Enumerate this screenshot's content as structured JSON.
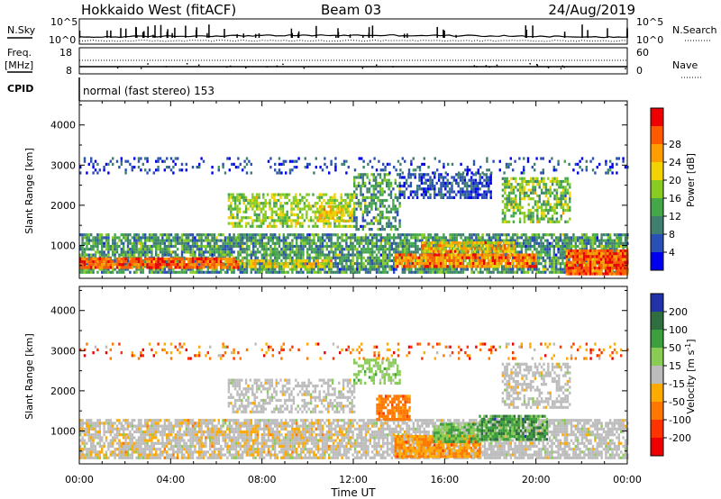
{
  "header": {
    "station": "Hokkaido West (fitACF)",
    "beam": "Beam 03",
    "date": "24/Aug/2019"
  },
  "noise_panel": {
    "left_label": "N.Sky",
    "right_label": "N.Search",
    "tick_top": "10^5",
    "tick_bottom": "10^0"
  },
  "freq_panel": {
    "left_label_1": "Freq.",
    "left_label_2": "[MHz]",
    "left_tick_top": "18",
    "left_tick_bottom": "8",
    "right_label": "Nave",
    "right_tick_top": "60",
    "right_tick_bottom": "0"
  },
  "cpid": {
    "label": "CPID",
    "value": "normal (fast stereo) 153"
  },
  "axes": {
    "x_label": "Time UT",
    "x_ticks": [
      "00:00",
      "04:00",
      "08:00",
      "12:00",
      "16:00",
      "20:00",
      "00:00"
    ],
    "y_label": "Slant Range [km]",
    "y_ticks": [
      "1000",
      "2000",
      "3000",
      "4000"
    ]
  },
  "chart_data": [
    {
      "type": "heatmap",
      "name_shown": "Power [dB]",
      "colorbar_label": "Power [dB]",
      "colorbar_ticks": [
        "4",
        "8",
        "12",
        "16",
        "20",
        "24",
        "28"
      ],
      "colors": [
        "#0000ee",
        "#2a4fb5",
        "#3f7f6f",
        "#44a84a",
        "#88cc22",
        "#f2d200",
        "#ff9c00",
        "#ff5a00",
        "#ee0000"
      ],
      "xlim": [
        0,
        24
      ],
      "ylim": [
        180,
        4600
      ],
      "regions": [
        {
          "t": [
            0,
            24
          ],
          "r": [
            300,
            1300
          ],
          "level": [
            1,
            4
          ],
          "density": 0.8
        },
        {
          "t": [
            0,
            7
          ],
          "r": [
            450,
            700
          ],
          "level": [
            6,
            8
          ],
          "density": 0.9
        },
        {
          "t": [
            7,
            11
          ],
          "r": [
            450,
            650
          ],
          "level": [
            4,
            6
          ],
          "density": 0.6
        },
        {
          "t": [
            13.8,
            20
          ],
          "r": [
            450,
            800
          ],
          "level": [
            5,
            8
          ],
          "density": 0.9
        },
        {
          "t": [
            15,
            19
          ],
          "r": [
            850,
            1100
          ],
          "level": [
            4,
            7
          ],
          "density": 0.8
        },
        {
          "t": [
            21.3,
            24
          ],
          "r": [
            300,
            900
          ],
          "level": [
            6,
            8
          ],
          "density": 0.95
        },
        {
          "t": [
            6.5,
            12
          ],
          "r": [
            1500,
            2300
          ],
          "level": [
            3,
            5
          ],
          "density": 0.6
        },
        {
          "t": [
            10.5,
            12
          ],
          "r": [
            1600,
            2000
          ],
          "level": [
            4,
            6
          ],
          "density": 0.7
        },
        {
          "t": [
            12,
            14
          ],
          "r": [
            1400,
            2800
          ],
          "level": [
            1,
            4
          ],
          "density": 0.5
        },
        {
          "t": [
            14,
            18
          ],
          "r": [
            2200,
            2800
          ],
          "level": [
            0,
            2
          ],
          "density": 0.6
        },
        {
          "t": [
            18.5,
            21.5
          ],
          "r": [
            1600,
            2700
          ],
          "level": [
            2,
            5
          ],
          "density": 0.6
        },
        {
          "t": [
            0,
            24
          ],
          "r": [
            2800,
            3200
          ],
          "level": [
            0,
            2
          ],
          "density": 0.2
        }
      ]
    },
    {
      "type": "heatmap",
      "name_shown": "Velocity [m s^-1]",
      "colorbar_label": "Velocity [m s",
      "colorbar_label_sup": "-1",
      "colorbar_label_end": "]",
      "colorbar_ticks": [
        "200",
        "100",
        "50",
        "15",
        "-15",
        "-50",
        "-100",
        "-200"
      ],
      "colors": [
        "#2233aa",
        "#2f6e3f",
        "#3c9e3c",
        "#88cc55",
        "#bcbcbc",
        "#ffaa00",
        "#ff7700",
        "#ff3300",
        "#ee0000"
      ],
      "xlim": [
        0,
        24
      ],
      "ylim": [
        180,
        4600
      ],
      "regions": [
        {
          "t": [
            0,
            24
          ],
          "r": [
            300,
            1300
          ],
          "level": [
            4,
            4
          ],
          "density": 0.75
        },
        {
          "t": [
            0,
            12
          ],
          "r": [
            300,
            1300
          ],
          "level": [
            5,
            5
          ],
          "density": 0.15
        },
        {
          "t": [
            13.8,
            17.5
          ],
          "r": [
            350,
            900
          ],
          "level": [
            5,
            6
          ],
          "density": 0.85
        },
        {
          "t": [
            15.5,
            17.5
          ],
          "r": [
            750,
            1200
          ],
          "level": [
            3,
            2
          ],
          "density": 0.8
        },
        {
          "t": [
            17.5,
            20.5
          ],
          "r": [
            800,
            1400
          ],
          "level": [
            1,
            3
          ],
          "density": 0.8
        },
        {
          "t": [
            13,
            14.5
          ],
          "r": [
            1300,
            1900
          ],
          "level": [
            6,
            6
          ],
          "density": 0.8
        },
        {
          "t": [
            6.5,
            12
          ],
          "r": [
            1500,
            2300
          ],
          "level": [
            4,
            4
          ],
          "density": 0.55
        },
        {
          "t": [
            12,
            14
          ],
          "r": [
            2200,
            2800
          ],
          "level": [
            3,
            3
          ],
          "density": 0.5
        },
        {
          "t": [
            18.5,
            21.5
          ],
          "r": [
            1600,
            2700
          ],
          "level": [
            4,
            4
          ],
          "density": 0.55
        },
        {
          "t": [
            0,
            24
          ],
          "r": [
            2800,
            3200
          ],
          "level": [
            4,
            8
          ],
          "density": 0.15
        }
      ]
    }
  ]
}
